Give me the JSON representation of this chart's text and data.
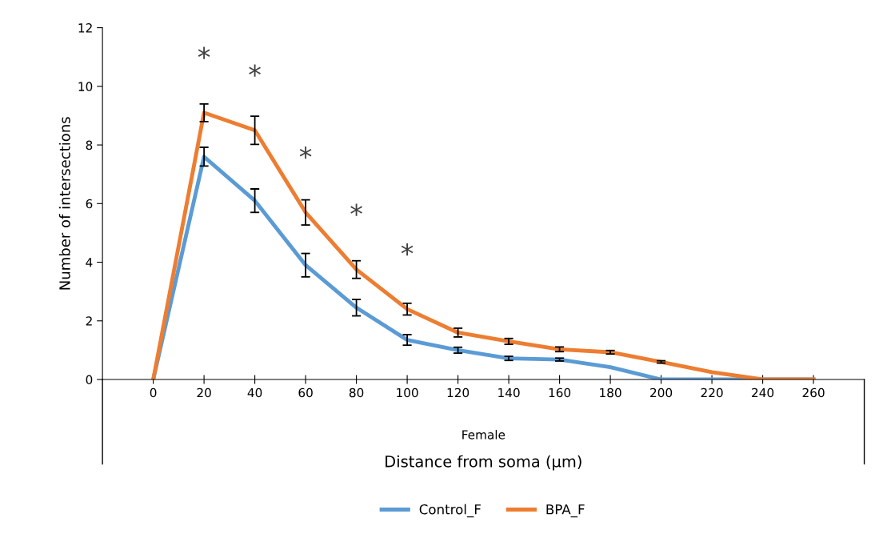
{
  "chart_data": {
    "type": "line",
    "xlabel": "Distance from soma (μm)",
    "ylabel": "Number of intersections",
    "categories": [
      "0",
      "20",
      "40",
      "60",
      "80",
      "100",
      "120",
      "140",
      "160",
      "180",
      "200",
      "220",
      "240",
      "260"
    ],
    "series": [
      {
        "name": "Control_F",
        "color": "#5b9bd5",
        "values": [
          0,
          7.6,
          6.1,
          3.9,
          2.45,
          1.35,
          1.0,
          0.72,
          0.68,
          0.42,
          0,
          0,
          0,
          0
        ],
        "errors": [
          null,
          0.32,
          0.4,
          0.4,
          0.28,
          0.18,
          0.1,
          0.07,
          0.05,
          null,
          null,
          null,
          null,
          null
        ]
      },
      {
        "name": "BPA_F",
        "color": "#ed7d31",
        "values": [
          0,
          9.1,
          8.5,
          5.7,
          3.75,
          2.4,
          1.6,
          1.3,
          1.03,
          0.93,
          0.6,
          0.25,
          0,
          0
        ],
        "errors": [
          null,
          0.3,
          0.48,
          0.43,
          0.3,
          0.2,
          0.15,
          0.1,
          0.08,
          0.06,
          0.04,
          null,
          null,
          null
        ]
      }
    ],
    "ylim": [
      0,
      12
    ],
    "yticks": [
      0,
      2,
      4,
      6,
      8,
      10,
      12
    ],
    "grid": false,
    "legend": "bottom",
    "marker": "none",
    "line_style": "solid",
    "annotations": [
      "*",
      "*",
      "*",
      "*",
      "*",
      "Female"
    ]
  }
}
